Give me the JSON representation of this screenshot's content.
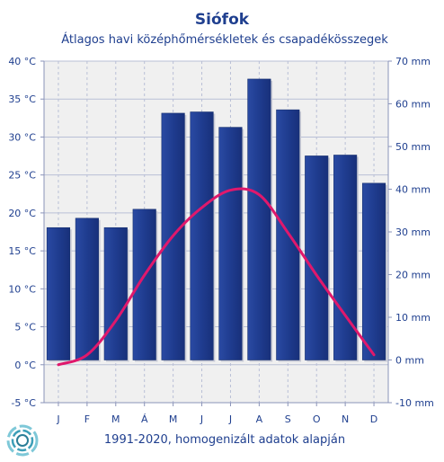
{
  "chart_data": {
    "type": "bar+line",
    "title": "Siófok",
    "subtitle": "Átlagos havi középhőmérsékletek  és csapadékösszegek",
    "footer": "1991-2020, homogenizált adatok alapján",
    "categories": [
      "J",
      "F",
      "M",
      "Á",
      "M",
      "J",
      "J",
      "A",
      "S",
      "O",
      "N",
      "D"
    ],
    "y_left": {
      "min": -5,
      "max": 40,
      "step": 5,
      "ticks": [
        "-5 °C",
        "0 °C",
        "5 °C",
        "10 °C",
        "15 °C",
        "20 °C",
        "25 °C",
        "30 °C",
        "35 °C",
        "40 °C"
      ]
    },
    "y_right": {
      "min": -10,
      "max": 70,
      "step": 10,
      "ticks": [
        "-10 mm",
        "0 mm",
        "10 mm",
        "20 mm",
        "30 mm",
        "40 mm",
        "50 mm",
        "60 mm",
        "70 mm"
      ]
    },
    "series": [
      {
        "name": "csapadék",
        "kind": "bar",
        "axis": "right",
        "values": [
          31,
          33.2,
          31,
          35.3,
          57.8,
          58.1,
          54.5,
          65.8,
          58.6,
          47.8,
          48,
          41.4
        ]
      },
      {
        "name": "középhőmérséklet",
        "kind": "line",
        "axis": "left",
        "values": [
          0,
          1.3,
          5.8,
          11.8,
          17.0,
          20.7,
          23.0,
          22.4,
          17.4,
          11.8,
          6.5,
          1.3
        ]
      }
    ],
    "grid": true,
    "colors": {
      "bar": "#1f3c8f",
      "line": "#e0186c",
      "text": "#1f3f8f",
      "grid": "#b9bfd6",
      "plot_bg": "#f0f0f0"
    }
  },
  "logo": {
    "name": "ring-logo"
  }
}
